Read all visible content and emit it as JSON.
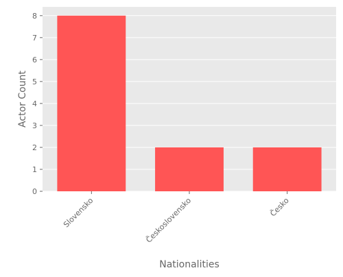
{
  "chart_data": {
    "type": "bar",
    "categories": [
      "Slovensko",
      "Československo",
      "Česko"
    ],
    "values": [
      8,
      2,
      2
    ],
    "xlabel": "Nationalities",
    "ylabel": "Actor Count",
    "ylim": [
      0,
      8.4
    ],
    "yticks": [
      0,
      1,
      2,
      3,
      4,
      5,
      6,
      7,
      8
    ],
    "grid": true,
    "legend": "none",
    "colors": {
      "bar": "#ff5555",
      "background": "#e9e9e9",
      "grid": "#ffffff",
      "text": "#666666"
    }
  }
}
